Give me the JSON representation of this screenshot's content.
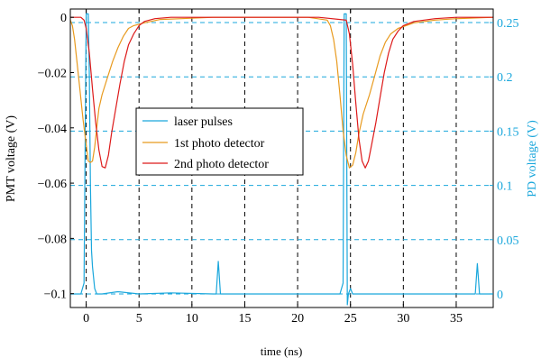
{
  "chart_data": {
    "type": "line",
    "xlabel": "time (ns)",
    "ylabel_left": "PMT voltage (V)",
    "ylabel_right": "PD voltage (V)",
    "xlim": [
      -1.5,
      38.5
    ],
    "ylim_left": [
      -0.105,
      0.003
    ],
    "ylim_right": [
      -0.0125,
      0.2625
    ],
    "x_ticks": [
      0,
      5,
      10,
      15,
      20,
      25,
      30,
      35
    ],
    "x_tick_labels": [
      "0",
      "5",
      "10",
      "15",
      "20",
      "25",
      "30",
      "35"
    ],
    "y_left_ticks": [
      0,
      -0.02,
      -0.04,
      -0.06,
      -0.08,
      -0.1
    ],
    "y_left_tick_labels": [
      "0",
      "−0.02",
      "−0.04",
      "−0.06",
      "−0.08",
      "−0.1"
    ],
    "y_right_ticks": [
      0,
      0.05,
      0.1,
      0.15,
      0.2,
      0.25
    ],
    "y_right_tick_labels": [
      "0",
      "0.05",
      "0.1",
      "0.15",
      "0.2",
      "0.25"
    ],
    "grid": {
      "x": "dashed-black",
      "y": "dashed-cyan-right-axis"
    },
    "legend_position": "center-left",
    "series": [
      {
        "name": "laser pulses",
        "axis": "right",
        "color": "#1aa7dc",
        "x": [
          -1.5,
          -0.5,
          -0.2,
          0,
          0.1,
          0.2,
          0.3,
          0.4,
          0.5,
          0.6,
          0.8,
          1.0,
          1.5,
          3,
          5,
          8,
          12.0,
          12.3,
          12.5,
          12.7,
          13,
          16,
          20,
          24.0,
          24.3,
          24.4,
          24.5,
          24.6,
          24.7,
          24.8,
          25.0,
          25.2,
          25.6,
          27,
          30,
          33,
          36.5,
          36.8,
          37.0,
          37.2,
          37.5,
          38.5
        ],
        "y": [
          0.0,
          0.0,
          0.01,
          0.258,
          0.258,
          0.258,
          0.2,
          0.1,
          0.04,
          0.025,
          0.005,
          0.0,
          0.0,
          0.002,
          0.0,
          0.001,
          0.0,
          0.0,
          0.03,
          0.0,
          0.0,
          0.0,
          0.0,
          0.0,
          0.01,
          0.258,
          0.258,
          0.258,
          -0.01,
          0.0,
          0.005,
          0.0,
          0.0,
          0.0,
          0.0,
          0.0,
          0.0,
          0.0,
          0.028,
          0.0,
          0.0,
          0.0
        ]
      },
      {
        "name": "1st photo detector",
        "axis": "left",
        "color": "#e89a1e",
        "x": [
          -1.5,
          -1.3,
          -1.1,
          -0.9,
          -0.6,
          -0.3,
          0.0,
          0.2,
          0.4,
          0.6,
          0.8,
          1.0,
          1.2,
          1.5,
          2.0,
          2.5,
          3.0,
          3.5,
          4.0,
          4.5,
          5.5,
          7.0,
          9.0,
          12.0,
          15.0,
          18.0,
          21.0,
          22.8,
          23.1,
          23.4,
          23.7,
          24.0,
          24.3,
          24.6,
          24.9,
          25.2,
          25.5,
          25.8,
          26.2,
          26.8,
          27.3,
          27.8,
          28.3,
          28.8,
          29.5,
          31.0,
          33.0,
          35.0,
          38.5
        ],
        "y": [
          -0.001,
          -0.003,
          -0.008,
          -0.015,
          -0.026,
          -0.037,
          -0.046,
          -0.052,
          -0.0525,
          -0.052,
          -0.047,
          -0.04,
          -0.033,
          -0.028,
          -0.022,
          -0.016,
          -0.011,
          -0.007,
          -0.004,
          -0.003,
          -0.002,
          -0.0008,
          -0.0005,
          0.0,
          0.0,
          0.0,
          0.0,
          -0.001,
          -0.003,
          -0.008,
          -0.016,
          -0.028,
          -0.041,
          -0.05,
          -0.0545,
          -0.0535,
          -0.049,
          -0.042,
          -0.035,
          -0.028,
          -0.021,
          -0.014,
          -0.009,
          -0.006,
          -0.004,
          -0.002,
          -0.001,
          -0.0005,
          0.0
        ]
      },
      {
        "name": "2nd photo detector",
        "axis": "left",
        "color": "#dd1a1a",
        "x": [
          -1.5,
          -0.5,
          -0.2,
          0.0,
          0.3,
          0.6,
          0.9,
          1.2,
          1.5,
          1.8,
          2.1,
          2.4,
          2.8,
          3.2,
          3.6,
          4.0,
          4.5,
          5.0,
          5.5,
          6.5,
          8.0,
          10.0,
          13.0,
          16.0,
          19.0,
          22.0,
          24.6,
          24.9,
          25.2,
          25.5,
          25.8,
          26.1,
          26.4,
          26.7,
          27.0,
          27.4,
          27.8,
          28.2,
          28.6,
          29.0,
          29.5,
          30.0,
          31.0,
          33.0,
          35.0,
          38.5
        ],
        "y": [
          0.0,
          0.0,
          -0.001,
          -0.004,
          -0.013,
          -0.026,
          -0.038,
          -0.048,
          -0.054,
          -0.0545,
          -0.05,
          -0.042,
          -0.033,
          -0.024,
          -0.016,
          -0.01,
          -0.006,
          -0.003,
          -0.0015,
          -0.0005,
          0.0,
          0.0,
          0.0,
          0.0,
          0.0,
          0.0,
          -0.001,
          -0.006,
          -0.017,
          -0.031,
          -0.044,
          -0.052,
          -0.0545,
          -0.052,
          -0.046,
          -0.038,
          -0.029,
          -0.02,
          -0.013,
          -0.008,
          -0.005,
          -0.003,
          -0.0015,
          -0.0005,
          0.0,
          0.0
        ]
      }
    ]
  }
}
